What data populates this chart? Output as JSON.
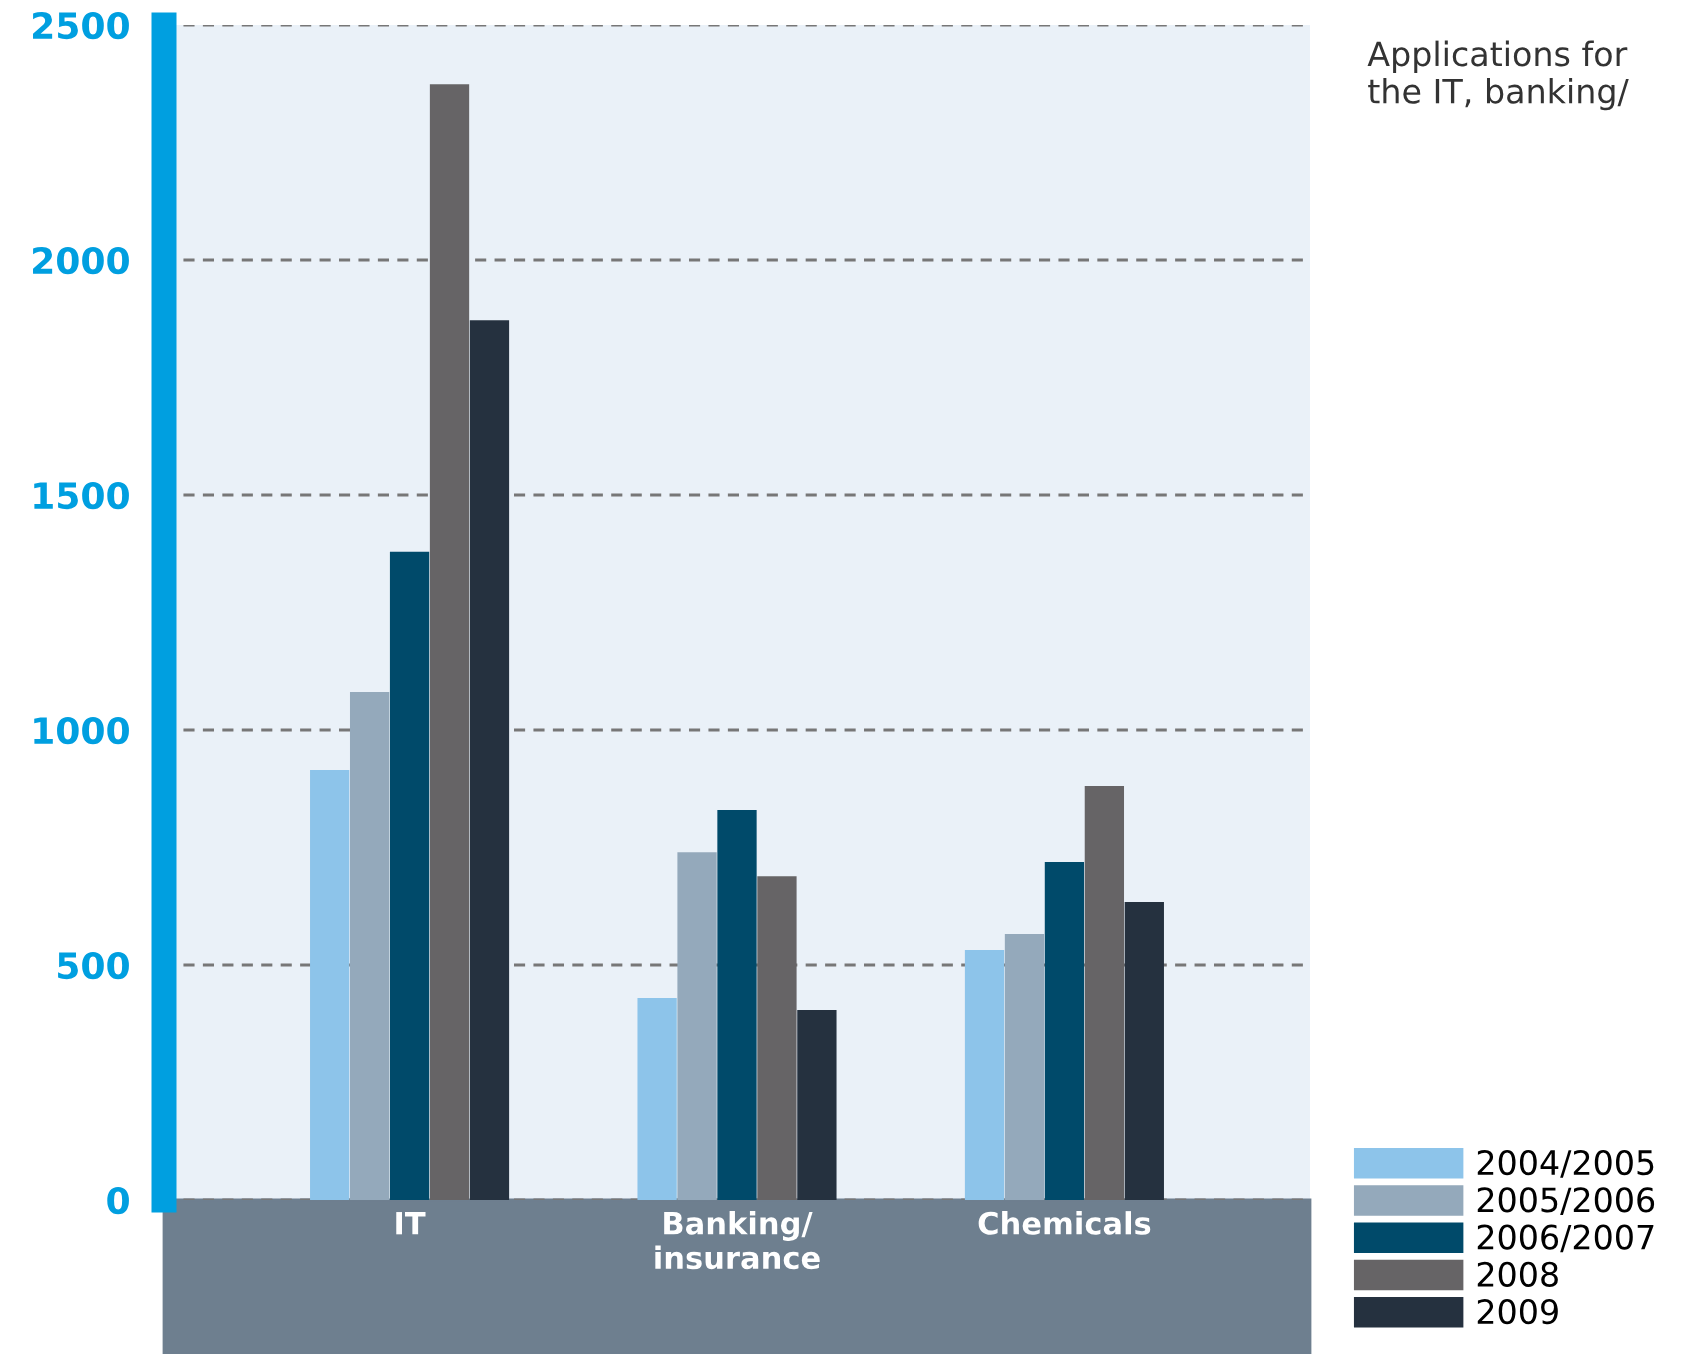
{
  "chart_data": {
    "type": "bar",
    "categories": [
      "IT",
      "Banking/\ninsurance",
      "Chemicals"
    ],
    "series": [
      {
        "name": "2004/2005",
        "color": "#8dc4ea",
        "values": [
          915,
          430,
          532
        ]
      },
      {
        "name": "2005/2006",
        "color": "#94a9bb",
        "values": [
          1081,
          740,
          566
        ]
      },
      {
        "name": "2006/2007",
        "color": "#004a6a",
        "values": [
          1379,
          830,
          719
        ]
      },
      {
        "name": "2008",
        "color": "#666466",
        "values": [
          2374,
          689,
          881
        ]
      },
      {
        "name": "2009",
        "color": "#25313f",
        "values": [
          1872,
          404,
          634
        ]
      }
    ],
    "ylim": [
      0,
      2500
    ],
    "yticks": [
      0,
      500,
      1000,
      1500,
      2000,
      2500
    ],
    "grid": "y",
    "legend": "bottom right",
    "annotations": [
      "Applications for the IT, banking/"
    ]
  }
}
